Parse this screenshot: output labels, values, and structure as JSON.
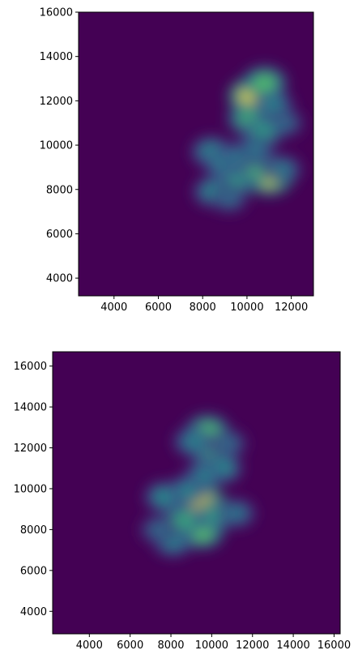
{
  "chart_data": [
    {
      "type": "heatmap",
      "colormap": "viridis",
      "background_color": "#440154",
      "xlim": [
        2400,
        13000
      ],
      "ylim": [
        3200,
        16000
      ],
      "xticks": [
        4000,
        6000,
        8000,
        10000,
        12000
      ],
      "yticks": [
        4000,
        6000,
        8000,
        10000,
        12000,
        14000,
        16000
      ],
      "xtick_labels": [
        "4000",
        "6000",
        "8000",
        "10000",
        "12000"
      ],
      "ytick_labels": [
        "4000",
        "6000",
        "8000",
        "10000",
        "12000",
        "14000",
        "16000"
      ],
      "grid": false,
      "hotspots": [
        {
          "x": 10300,
          "y": 12200,
          "intensity": 1.0
        },
        {
          "x": 10800,
          "y": 12800,
          "intensity": 0.7
        },
        {
          "x": 10100,
          "y": 11200,
          "intensity": 0.65
        },
        {
          "x": 11200,
          "y": 11800,
          "intensity": 0.45
        },
        {
          "x": 11700,
          "y": 11000,
          "intensity": 0.35
        },
        {
          "x": 10700,
          "y": 10600,
          "intensity": 0.55
        },
        {
          "x": 11000,
          "y": 8600,
          "intensity": 0.95
        },
        {
          "x": 10000,
          "y": 8800,
          "intensity": 0.7
        },
        {
          "x": 9400,
          "y": 8300,
          "intensity": 0.55
        },
        {
          "x": 8400,
          "y": 9700,
          "intensity": 0.5
        },
        {
          "x": 8900,
          "y": 9200,
          "intensity": 0.45
        },
        {
          "x": 9700,
          "y": 9500,
          "intensity": 0.45
        },
        {
          "x": 8500,
          "y": 7900,
          "intensity": 0.5
        },
        {
          "x": 9200,
          "y": 7600,
          "intensity": 0.35
        },
        {
          "x": 11600,
          "y": 8900,
          "intensity": 0.4
        },
        {
          "x": 10400,
          "y": 9800,
          "intensity": 0.4
        }
      ]
    },
    {
      "type": "heatmap",
      "colormap": "viridis",
      "background_color": "#440154",
      "xlim": [
        2200,
        16300
      ],
      "ylim": [
        2900,
        16700
      ],
      "xticks": [
        4000,
        6000,
        8000,
        10000,
        12000,
        14000,
        16000
      ],
      "yticks": [
        4000,
        6000,
        8000,
        10000,
        12000,
        14000,
        16000
      ],
      "xtick_labels": [
        "4000",
        "6000",
        "8000",
        "10000",
        "12000",
        "14000",
        "16000"
      ],
      "ytick_labels": [
        "4000",
        "6000",
        "8000",
        "10000",
        "12000",
        "14000",
        "16000"
      ],
      "grid": false,
      "hotspots": [
        {
          "x": 9500,
          "y": 9200,
          "intensity": 1.0
        },
        {
          "x": 9800,
          "y": 12800,
          "intensity": 0.7
        },
        {
          "x": 10000,
          "y": 11800,
          "intensity": 0.6
        },
        {
          "x": 10500,
          "y": 11000,
          "intensity": 0.5
        },
        {
          "x": 9600,
          "y": 10600,
          "intensity": 0.45
        },
        {
          "x": 9500,
          "y": 7900,
          "intensity": 0.75
        },
        {
          "x": 8600,
          "y": 8400,
          "intensity": 0.6
        },
        {
          "x": 7700,
          "y": 9600,
          "intensity": 0.5
        },
        {
          "x": 8100,
          "y": 7400,
          "intensity": 0.45
        },
        {
          "x": 10200,
          "y": 8700,
          "intensity": 0.55
        },
        {
          "x": 11200,
          "y": 8800,
          "intensity": 0.4
        },
        {
          "x": 7400,
          "y": 8000,
          "intensity": 0.35
        },
        {
          "x": 9100,
          "y": 12300,
          "intensity": 0.45
        },
        {
          "x": 10800,
          "y": 12200,
          "intensity": 0.35
        },
        {
          "x": 8800,
          "y": 9900,
          "intensity": 0.45
        }
      ]
    }
  ]
}
